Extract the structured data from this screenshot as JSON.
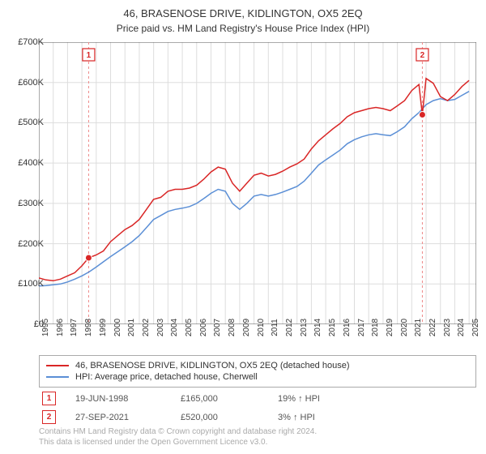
{
  "title": "46, BRASENOSE DRIVE, KIDLINGTON, OX5 2EQ",
  "subtitle": "Price paid vs. HM Land Registry's House Price Index (HPI)",
  "chart": {
    "type": "line",
    "background_color": "#ffffff",
    "grid_color": "#dddddd",
    "axis_color": "#555555",
    "x_range": [
      1995,
      2025.5
    ],
    "y_range": [
      0,
      700000
    ],
    "y_ticks": [
      0,
      100000,
      200000,
      300000,
      400000,
      500000,
      600000,
      700000
    ],
    "y_tick_labels": [
      "£0",
      "£100K",
      "£200K",
      "£300K",
      "£400K",
      "£500K",
      "£600K",
      "£700K"
    ],
    "x_ticks": [
      1995,
      1996,
      1997,
      1998,
      1999,
      2000,
      2001,
      2002,
      2003,
      2004,
      2005,
      2006,
      2007,
      2008,
      2009,
      2010,
      2011,
      2012,
      2013,
      2014,
      2015,
      2016,
      2017,
      2018,
      2019,
      2020,
      2021,
      2022,
      2023,
      2024,
      2025
    ],
    "x_tick_labels": [
      "1995",
      "1996",
      "1997",
      "1998",
      "1999",
      "2000",
      "2001",
      "2002",
      "2003",
      "2004",
      "2005",
      "2006",
      "2007",
      "2008",
      "2009",
      "2010",
      "2011",
      "2012",
      "2013",
      "2014",
      "2015",
      "2016",
      "2017",
      "2018",
      "2019",
      "2020",
      "2021",
      "2022",
      "2023",
      "2024",
      "2025"
    ],
    "series": [
      {
        "name": "property",
        "label": "46, BRASENOSE DRIVE, KIDLINGTON, OX5 2EQ (detached house)",
        "color": "#d92626",
        "line_width": 1.5,
        "data": [
          [
            1995,
            115000
          ],
          [
            1995.5,
            110000
          ],
          [
            1996,
            108000
          ],
          [
            1996.5,
            112000
          ],
          [
            1997,
            120000
          ],
          [
            1997.5,
            128000
          ],
          [
            1998,
            145000
          ],
          [
            1998.47,
            165000
          ],
          [
            1999,
            172000
          ],
          [
            1999.5,
            182000
          ],
          [
            2000,
            205000
          ],
          [
            2000.5,
            220000
          ],
          [
            2001,
            235000
          ],
          [
            2001.5,
            245000
          ],
          [
            2002,
            260000
          ],
          [
            2002.5,
            285000
          ],
          [
            2003,
            310000
          ],
          [
            2003.5,
            315000
          ],
          [
            2004,
            330000
          ],
          [
            2004.5,
            335000
          ],
          [
            2005,
            335000
          ],
          [
            2005.5,
            338000
          ],
          [
            2006,
            345000
          ],
          [
            2006.5,
            360000
          ],
          [
            2007,
            378000
          ],
          [
            2007.5,
            390000
          ],
          [
            2008,
            385000
          ],
          [
            2008.5,
            350000
          ],
          [
            2009,
            330000
          ],
          [
            2009.5,
            350000
          ],
          [
            2010,
            370000
          ],
          [
            2010.5,
            375000
          ],
          [
            2011,
            368000
          ],
          [
            2011.5,
            372000
          ],
          [
            2012,
            380000
          ],
          [
            2012.5,
            390000
          ],
          [
            2013,
            398000
          ],
          [
            2013.5,
            410000
          ],
          [
            2014,
            435000
          ],
          [
            2014.5,
            455000
          ],
          [
            2015,
            470000
          ],
          [
            2015.5,
            485000
          ],
          [
            2016,
            498000
          ],
          [
            2016.5,
            515000
          ],
          [
            2017,
            525000
          ],
          [
            2017.5,
            530000
          ],
          [
            2018,
            535000
          ],
          [
            2018.5,
            538000
          ],
          [
            2019,
            535000
          ],
          [
            2019.5,
            530000
          ],
          [
            2020,
            542000
          ],
          [
            2020.5,
            555000
          ],
          [
            2021,
            580000
          ],
          [
            2021.5,
            595000
          ],
          [
            2021.74,
            520000
          ],
          [
            2022,
            610000
          ],
          [
            2022.5,
            598000
          ],
          [
            2023,
            565000
          ],
          [
            2023.5,
            555000
          ],
          [
            2024,
            570000
          ],
          [
            2024.5,
            590000
          ],
          [
            2025,
            605000
          ]
        ]
      },
      {
        "name": "hpi",
        "label": "HPI: Average price, detached house, Cherwell",
        "color": "#5b8fd6",
        "line_width": 1.5,
        "data": [
          [
            1995,
            95000
          ],
          [
            1995.5,
            96000
          ],
          [
            1996,
            98000
          ],
          [
            1996.5,
            100000
          ],
          [
            1997,
            105000
          ],
          [
            1997.5,
            112000
          ],
          [
            1998,
            120000
          ],
          [
            1998.5,
            130000
          ],
          [
            1999,
            142000
          ],
          [
            1999.5,
            155000
          ],
          [
            2000,
            168000
          ],
          [
            2000.5,
            180000
          ],
          [
            2001,
            192000
          ],
          [
            2001.5,
            205000
          ],
          [
            2002,
            220000
          ],
          [
            2002.5,
            240000
          ],
          [
            2003,
            260000
          ],
          [
            2003.5,
            270000
          ],
          [
            2004,
            280000
          ],
          [
            2004.5,
            285000
          ],
          [
            2005,
            288000
          ],
          [
            2005.5,
            292000
          ],
          [
            2006,
            300000
          ],
          [
            2006.5,
            312000
          ],
          [
            2007,
            325000
          ],
          [
            2007.5,
            335000
          ],
          [
            2008,
            330000
          ],
          [
            2008.5,
            300000
          ],
          [
            2009,
            285000
          ],
          [
            2009.5,
            300000
          ],
          [
            2010,
            318000
          ],
          [
            2010.5,
            322000
          ],
          [
            2011,
            318000
          ],
          [
            2011.5,
            322000
          ],
          [
            2012,
            328000
          ],
          [
            2012.5,
            335000
          ],
          [
            2013,
            342000
          ],
          [
            2013.5,
            355000
          ],
          [
            2014,
            375000
          ],
          [
            2014.5,
            395000
          ],
          [
            2015,
            408000
          ],
          [
            2015.5,
            420000
          ],
          [
            2016,
            432000
          ],
          [
            2016.5,
            448000
          ],
          [
            2017,
            458000
          ],
          [
            2017.5,
            465000
          ],
          [
            2018,
            470000
          ],
          [
            2018.5,
            473000
          ],
          [
            2019,
            470000
          ],
          [
            2019.5,
            468000
          ],
          [
            2020,
            478000
          ],
          [
            2020.5,
            490000
          ],
          [
            2021,
            510000
          ],
          [
            2021.5,
            525000
          ],
          [
            2022,
            545000
          ],
          [
            2022.5,
            555000
          ],
          [
            2023,
            560000
          ],
          [
            2023.5,
            555000
          ],
          [
            2024,
            558000
          ],
          [
            2024.5,
            568000
          ],
          [
            2025,
            578000
          ]
        ]
      }
    ],
    "transaction_markers": [
      {
        "num": "1",
        "x": 1998.47,
        "y": 165000,
        "color": "#d92626"
      },
      {
        "num": "2",
        "x": 2021.74,
        "y": 520000,
        "color": "#d92626"
      }
    ],
    "marker_vline_color": "#e88",
    "marker_box_fill": "#ffffff",
    "marker_box_size": 15
  },
  "legend": {
    "items": [
      {
        "color": "#d92626",
        "label": "46, BRASENOSE DRIVE, KIDLINGTON, OX5 2EQ (detached house)"
      },
      {
        "color": "#5b8fd6",
        "label": "HPI: Average price, detached house, Cherwell"
      }
    ]
  },
  "transactions": [
    {
      "num": "1",
      "color": "#d92626",
      "date": "19-JUN-1998",
      "price": "£165,000",
      "pct": "19% ↑ HPI"
    },
    {
      "num": "2",
      "color": "#d92626",
      "date": "27-SEP-2021",
      "price": "£520,000",
      "pct": "3% ↑ HPI"
    }
  ],
  "footer": {
    "line1": "Contains HM Land Registry data © Crown copyright and database right 2024.",
    "line2": "This data is licensed under the Open Government Licence v3.0."
  }
}
